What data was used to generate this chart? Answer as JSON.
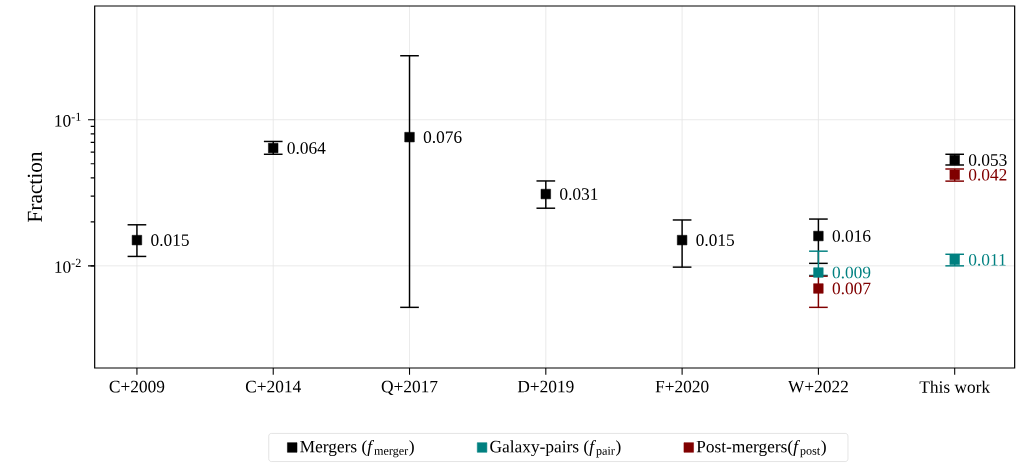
{
  "chart_data": {
    "type": "scatter",
    "ylabel": "Fraction",
    "categories": [
      "C+2009",
      "C+2014",
      "Q+2017",
      "D+2019",
      "F+2020",
      "W+2022",
      "This work"
    ],
    "series": [
      {
        "name": "Mergers (*f*$_{merger}$)",
        "color": "#000000",
        "values": [
          0.015,
          0.064,
          0.076,
          0.031,
          0.015,
          0.016,
          0.053
        ],
        "errors": [
          [
            0.0116,
            0.0191
          ],
          [
            0.058,
            0.071
          ],
          [
            0.0052,
            0.274
          ],
          [
            0.0248,
            0.0381
          ],
          [
            0.0098,
            0.0206
          ],
          [
            0.0104,
            0.0209
          ],
          [
            0.049,
            0.058
          ]
        ]
      },
      {
        "name": "Galaxy-pairs (*f*$_{pair}$)",
        "color": "#008080",
        "values": [
          null,
          null,
          null,
          null,
          null,
          0.009,
          0.011
        ],
        "errors": [
          null,
          null,
          null,
          null,
          null,
          [
            0.0086,
            0.0126
          ],
          [
            0.01,
            0.012
          ]
        ]
      },
      {
        "name": "Post-mergers(*f*$_{post}$)",
        "color": "#800000",
        "values": [
          null,
          null,
          null,
          null,
          null,
          0.007,
          0.042
        ],
        "errors": [
          null,
          null,
          null,
          null,
          null,
          [
            0.0052,
            0.0085
          ],
          [
            0.038,
            0.046
          ]
        ]
      }
    ],
    "log": "y",
    "ylim": [
      0.002,
      0.6
    ],
    "yticks": [
      {
        "value": 0.01,
        "label": "10$^{-2}$"
      },
      {
        "value": 0.1,
        "label": "10$^{-1}$"
      }
    ],
    "grid": true,
    "legend": "bottom",
    "marker": "square",
    "data_labels": true
  }
}
